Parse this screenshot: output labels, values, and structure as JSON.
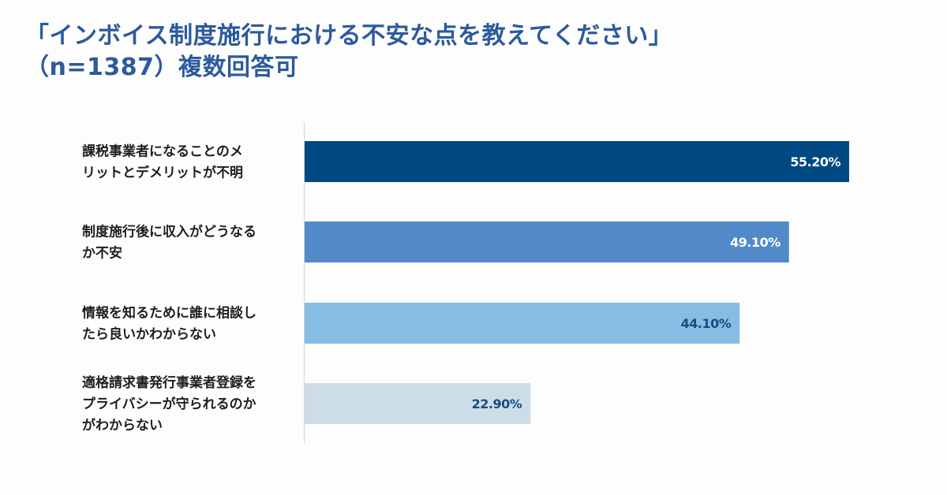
{
  "chart_data": {
    "type": "bar",
    "orientation": "horizontal",
    "title": [
      "「インボイス制度施行における不安な点を教えてください」",
      "（n=1387）複数回答可"
    ],
    "categories": [
      [
        "課税事業者になることのメ",
        "リットとデメリットが不明"
      ],
      [
        "制度施行後に収入がどうなる",
        "か不安"
      ],
      [
        "情報を知るために誰に相談し",
        "たら良いかわからない"
      ],
      [
        "適格請求書発行事業者登録を",
        "プライバシーが守られるのか",
        "がわからない"
      ]
    ],
    "values": [
      55.2,
      49.1,
      44.1,
      22.9
    ],
    "value_labels": [
      "55.20%",
      "49.10%",
      "44.10%",
      "22.90%"
    ],
    "bar_colors": [
      "#004983",
      "#5289c9",
      "#87bde3",
      "#cddde8"
    ],
    "value_label_colors": [
      "#ffffff",
      "#ffffff",
      "#1a4a80",
      "#1a4a80"
    ],
    "xlim": [
      0,
      60
    ],
    "grid": false,
    "legend": "none"
  }
}
